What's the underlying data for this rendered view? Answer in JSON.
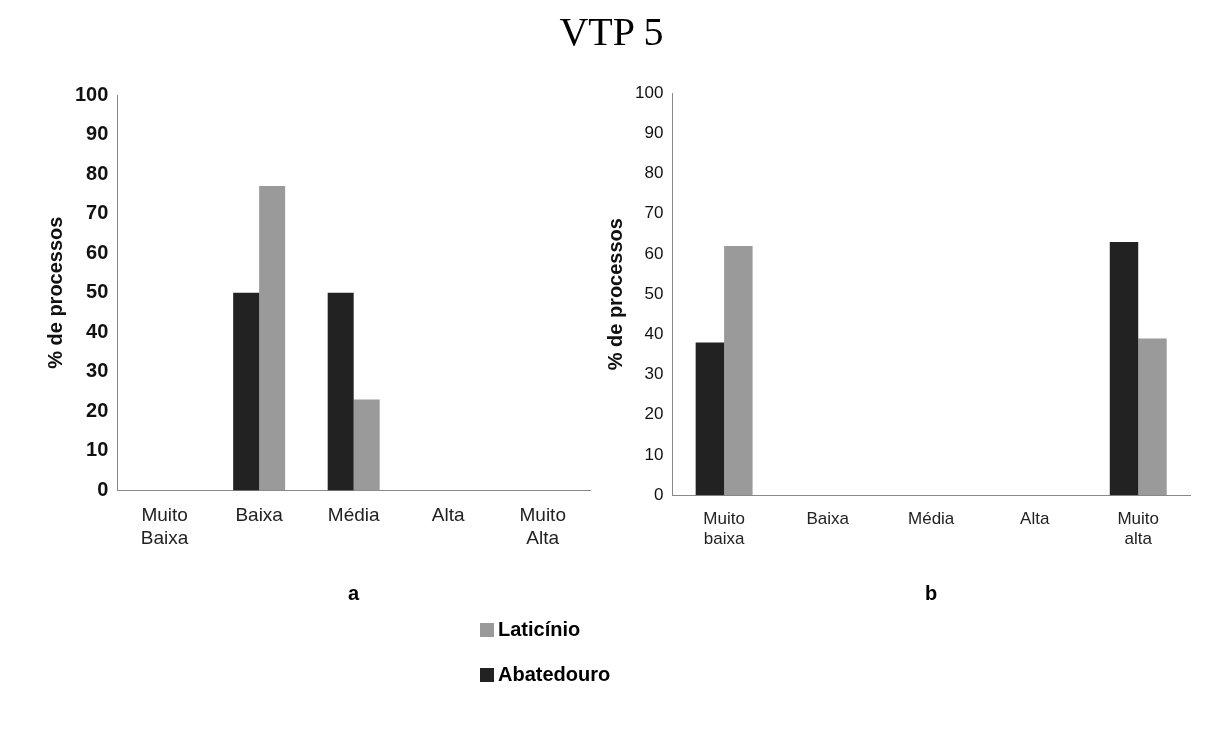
{
  "chart_data": [
    {
      "type": "bar",
      "title": "VTP 5",
      "xlabel": "a",
      "ylabel": "% de processos",
      "categories": [
        "Muito Baixa",
        "Baixa",
        "Média",
        "Alta",
        "Muito Alta"
      ],
      "series": [
        {
          "name": "Abatedouro",
          "color": "#222222",
          "values": [
            0,
            50,
            50,
            0,
            0
          ]
        },
        {
          "name": "Laticínio",
          "color": "#9a9a9a",
          "values": [
            0,
            77,
            23,
            0,
            0
          ]
        }
      ],
      "ylim": [
        0,
        100
      ],
      "yticks": [
        0,
        10,
        20,
        30,
        40,
        50,
        60,
        70,
        80,
        90,
        100
      ],
      "grid": false,
      "legend": "bottom"
    },
    {
      "type": "bar",
      "xlabel": "b",
      "ylabel": "% de processos",
      "categories": [
        "Muito baixa",
        "Baixa",
        "Média",
        "Alta",
        "Muito alta"
      ],
      "series": [
        {
          "color": "#222222",
          "values": [
            38,
            0,
            0,
            0,
            63
          ]
        },
        {
          "color": "#9a9a9a",
          "values": [
            62,
            0,
            0,
            0,
            39
          ]
        }
      ],
      "ylim": [
        0,
        100
      ],
      "yticks": [
        0,
        10,
        20,
        30,
        40,
        50,
        60,
        70,
        80,
        90,
        100
      ],
      "grid": false
    }
  ]
}
